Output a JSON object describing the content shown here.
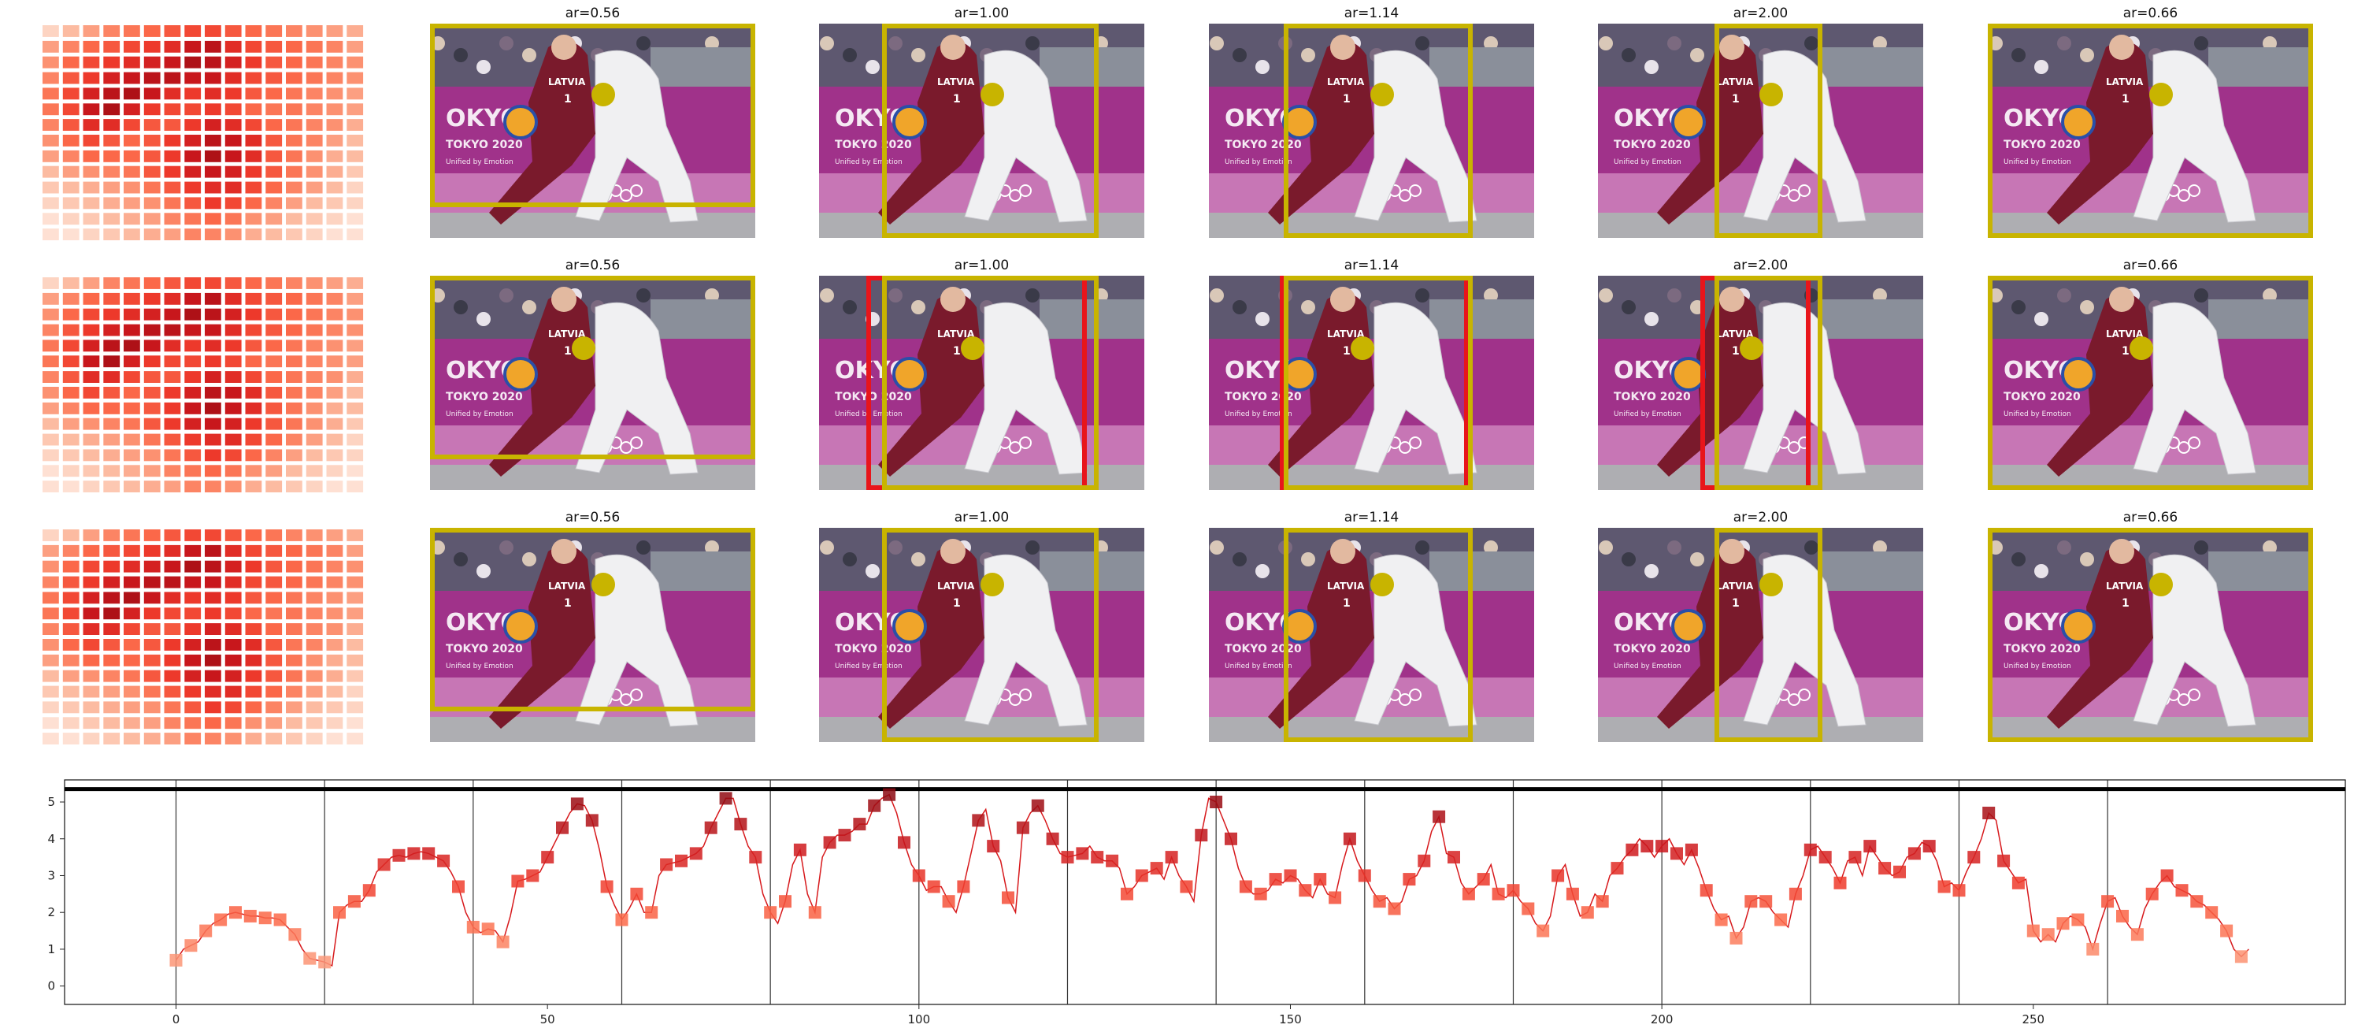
{
  "colors": {
    "box": "#c8b400",
    "alt_box": "#e8151b",
    "line": "#d7191c",
    "axis": "#111111",
    "court": "#aeaeb2",
    "banner": "#a0328a",
    "player_red": "#7a1a2c",
    "player_white": "#f0f0f2"
  },
  "panels": {
    "titles": [
      [
        "ar=0.56",
        "ar=1.00",
        "ar=1.14",
        "ar=2.00",
        "ar=0.66"
      ],
      [
        "ar=0.56",
        "ar=1.00",
        "ar=1.14",
        "ar=2.00",
        "ar=0.66"
      ],
      [
        "ar=0.56",
        "ar=1.00",
        "ar=1.14",
        "ar=2.00",
        "ar=0.66"
      ]
    ],
    "image_text": {
      "jersey": "LATVIA",
      "number": "1",
      "banner_a": "OKYO",
      "banner_b": "TOKYO 2020",
      "banner_c": "2020",
      "banner_small": "Unified by Emotion"
    },
    "red_box_row": 1
  },
  "chart_data": [
    {
      "type": "heatmap",
      "description_of_content": "three identical square-marker heatmaps (rows x columns grid)",
      "rows": 14,
      "cols": 16,
      "colormap": "Reds",
      "values": [
        [
          0.1,
          0.2,
          0.3,
          0.4,
          0.45,
          0.5,
          0.55,
          0.6,
          0.6,
          0.55,
          0.5,
          0.45,
          0.4,
          0.35,
          0.3,
          0.25
        ],
        [
          0.3,
          0.4,
          0.5,
          0.55,
          0.6,
          0.65,
          0.7,
          0.8,
          0.85,
          0.7,
          0.6,
          0.55,
          0.5,
          0.45,
          0.4,
          0.3
        ],
        [
          0.35,
          0.5,
          0.6,
          0.65,
          0.7,
          0.75,
          0.8,
          0.9,
          0.85,
          0.75,
          0.65,
          0.55,
          0.5,
          0.45,
          0.4,
          0.35
        ],
        [
          0.4,
          0.55,
          0.65,
          0.75,
          0.8,
          0.85,
          0.85,
          0.8,
          0.8,
          0.7,
          0.6,
          0.55,
          0.5,
          0.45,
          0.4,
          0.35
        ],
        [
          0.45,
          0.6,
          0.75,
          0.85,
          0.9,
          0.8,
          0.7,
          0.65,
          0.7,
          0.65,
          0.55,
          0.5,
          0.45,
          0.4,
          0.35,
          0.3
        ],
        [
          0.45,
          0.6,
          0.8,
          0.9,
          0.75,
          0.65,
          0.6,
          0.6,
          0.65,
          0.6,
          0.5,
          0.45,
          0.45,
          0.4,
          0.35,
          0.3
        ],
        [
          0.4,
          0.55,
          0.7,
          0.7,
          0.6,
          0.55,
          0.55,
          0.65,
          0.75,
          0.7,
          0.6,
          0.5,
          0.45,
          0.4,
          0.35,
          0.25
        ],
        [
          0.35,
          0.5,
          0.6,
          0.55,
          0.5,
          0.55,
          0.65,
          0.75,
          0.85,
          0.8,
          0.7,
          0.55,
          0.45,
          0.4,
          0.3,
          0.2
        ],
        [
          0.3,
          0.4,
          0.5,
          0.5,
          0.5,
          0.55,
          0.65,
          0.8,
          0.9,
          0.8,
          0.7,
          0.55,
          0.45,
          0.35,
          0.25,
          0.2
        ],
        [
          0.2,
          0.3,
          0.35,
          0.4,
          0.45,
          0.55,
          0.65,
          0.75,
          0.8,
          0.75,
          0.65,
          0.55,
          0.45,
          0.35,
          0.25,
          0.15
        ],
        [
          0.15,
          0.2,
          0.25,
          0.3,
          0.35,
          0.45,
          0.55,
          0.65,
          0.7,
          0.7,
          0.6,
          0.5,
          0.4,
          0.3,
          0.2,
          0.1
        ],
        [
          0.1,
          0.15,
          0.2,
          0.25,
          0.3,
          0.35,
          0.45,
          0.55,
          0.65,
          0.6,
          0.5,
          0.4,
          0.3,
          0.2,
          0.15,
          0.1
        ],
        [
          0.05,
          0.1,
          0.15,
          0.2,
          0.25,
          0.3,
          0.4,
          0.45,
          0.5,
          0.45,
          0.35,
          0.3,
          0.2,
          0.15,
          0.1,
          0.05
        ],
        [
          0.05,
          0.05,
          0.1,
          0.15,
          0.2,
          0.25,
          0.3,
          0.4,
          0.4,
          0.35,
          0.25,
          0.2,
          0.15,
          0.1,
          0.05,
          0.05
        ]
      ]
    },
    {
      "type": "line",
      "x_start": 0,
      "x_step": 1,
      "values": [
        0.7,
        1.0,
        1.1,
        1.2,
        1.5,
        1.7,
        1.8,
        1.95,
        2.0,
        1.95,
        1.9,
        1.9,
        1.85,
        1.85,
        1.8,
        1.6,
        1.4,
        1.0,
        0.75,
        0.7,
        0.65,
        0.55,
        2.0,
        2.2,
        2.3,
        2.3,
        2.6,
        3.1,
        3.3,
        3.5,
        3.55,
        3.5,
        3.6,
        3.65,
        3.6,
        3.5,
        3.4,
        3.1,
        2.7,
        2.0,
        1.6,
        1.45,
        1.55,
        1.5,
        1.2,
        1.9,
        2.85,
        2.9,
        3.0,
        3.1,
        3.5,
        3.9,
        4.3,
        4.7,
        4.95,
        4.9,
        4.5,
        3.7,
        2.7,
        2.2,
        1.8,
        2.1,
        2.5,
        2.0,
        2.0,
        3.0,
        3.3,
        3.35,
        3.4,
        3.5,
        3.6,
        3.8,
        4.3,
        4.7,
        5.1,
        5.1,
        4.4,
        3.8,
        3.5,
        2.5,
        2.0,
        1.7,
        2.3,
        3.3,
        3.7,
        2.5,
        2.0,
        3.5,
        3.9,
        4.1,
        4.1,
        4.2,
        4.4,
        4.4,
        4.9,
        5.1,
        5.2,
        4.7,
        3.9,
        3.3,
        3.0,
        2.6,
        2.7,
        2.7,
        2.3,
        2.0,
        2.7,
        3.6,
        4.5,
        4.8,
        3.8,
        3.4,
        2.4,
        2.0,
        4.3,
        4.7,
        4.9,
        4.5,
        4.0,
        3.6,
        3.5,
        3.55,
        3.6,
        3.8,
        3.5,
        3.4,
        3.4,
        3.2,
        2.5,
        2.7,
        3.0,
        3.1,
        3.2,
        2.9,
        3.5,
        3.0,
        2.7,
        2.3,
        4.1,
        5.1,
        5.0,
        4.5,
        4.0,
        3.2,
        2.7,
        2.5,
        2.5,
        2.6,
        2.9,
        2.8,
        3.0,
        2.9,
        2.6,
        2.4,
        2.9,
        2.5,
        2.4,
        3.3,
        4.0,
        3.4,
        3.0,
        2.6,
        2.3,
        2.4,
        2.1,
        2.3,
        2.9,
        3.0,
        3.4,
        4.2,
        4.6,
        3.6,
        3.5,
        2.8,
        2.5,
        2.7,
        2.9,
        3.3,
        2.5,
        2.4,
        2.6,
        2.3,
        2.1,
        1.7,
        1.5,
        1.9,
        3.0,
        3.3,
        2.5,
        1.9,
        2.0,
        2.5,
        2.3,
        3.0,
        3.2,
        3.5,
        3.7,
        4.0,
        3.8,
        3.5,
        3.8,
        4.0,
        3.6,
        3.3,
        3.7,
        3.2,
        2.6,
        2.1,
        1.8,
        1.9,
        1.3,
        1.6,
        2.3,
        2.4,
        2.3,
        2.0,
        1.8,
        1.6,
        2.5,
        3.0,
        3.7,
        3.8,
        3.5,
        3.2,
        2.8,
        3.4,
        3.5,
        3.0,
        3.8,
        3.5,
        3.2,
        3.0,
        3.1,
        3.5,
        3.6,
        3.9,
        3.8,
        3.4,
        2.7,
        2.8,
        2.6,
        3.1,
        3.5,
        4.0,
        4.7,
        4.5,
        3.4,
        3.1,
        2.8,
        2.9,
        1.5,
        1.2,
        1.4,
        1.2,
        1.7,
        1.9,
        1.8,
        1.6,
        1.0,
        1.7,
        2.3,
        2.4,
        1.9,
        1.6,
        1.4,
        2.1,
        2.5,
        2.8,
        3.0,
        2.7,
        2.6,
        2.5,
        2.3,
        2.2,
        2.0,
        1.8,
        1.5,
        1.0,
        0.8,
        1.0
      ],
      "x_ticks": [
        0,
        50,
        100,
        150,
        200,
        250
      ],
      "y_ticks": [
        0,
        1,
        2,
        3,
        4,
        5
      ],
      "xlim": [
        -15,
        292
      ],
      "ylim": [
        -0.5,
        5.6
      ],
      "reference_hline": 5.35,
      "vlines": [
        0,
        20,
        40,
        60,
        80,
        100,
        120,
        140,
        160,
        180,
        200,
        220,
        240,
        260
      ]
    }
  ]
}
